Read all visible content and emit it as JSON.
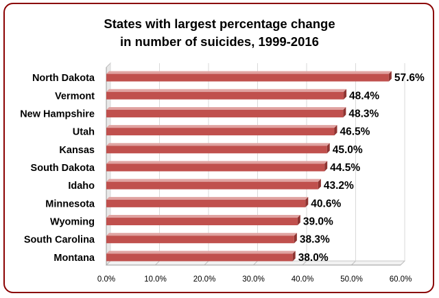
{
  "chart_data": {
    "type": "bar",
    "orientation": "horizontal",
    "title_lines": [
      "States with largest percentage change",
      "in number of suicides, 1999-2016"
    ],
    "categories": [
      "North Dakota",
      "Vermont",
      "New Hampshire",
      "Utah",
      "Kansas",
      "South Dakota",
      "Idaho",
      "Minnesota",
      "Wyoming",
      "South Carolina",
      "Montana"
    ],
    "values": [
      57.6,
      48.4,
      48.3,
      46.5,
      45.0,
      44.5,
      43.2,
      40.6,
      39.0,
      38.3,
      38.0
    ],
    "value_labels": [
      "57.6%",
      "48.4%",
      "48.3%",
      "46.5%",
      "45.0%",
      "44.5%",
      "43.2%",
      "40.6%",
      "39.0%",
      "38.3%",
      "38.0%"
    ],
    "xlim": [
      0,
      60
    ],
    "ticks": [
      0,
      10,
      20,
      30,
      40,
      50,
      60
    ],
    "tick_labels": [
      "0.0%",
      "10.0%",
      "20.0%",
      "30.0%",
      "40.0%",
      "50.0%",
      "60.0%"
    ],
    "bar_color": "#c0504d",
    "border_color": "#8a0000",
    "xlabel": "",
    "ylabel": ""
  }
}
